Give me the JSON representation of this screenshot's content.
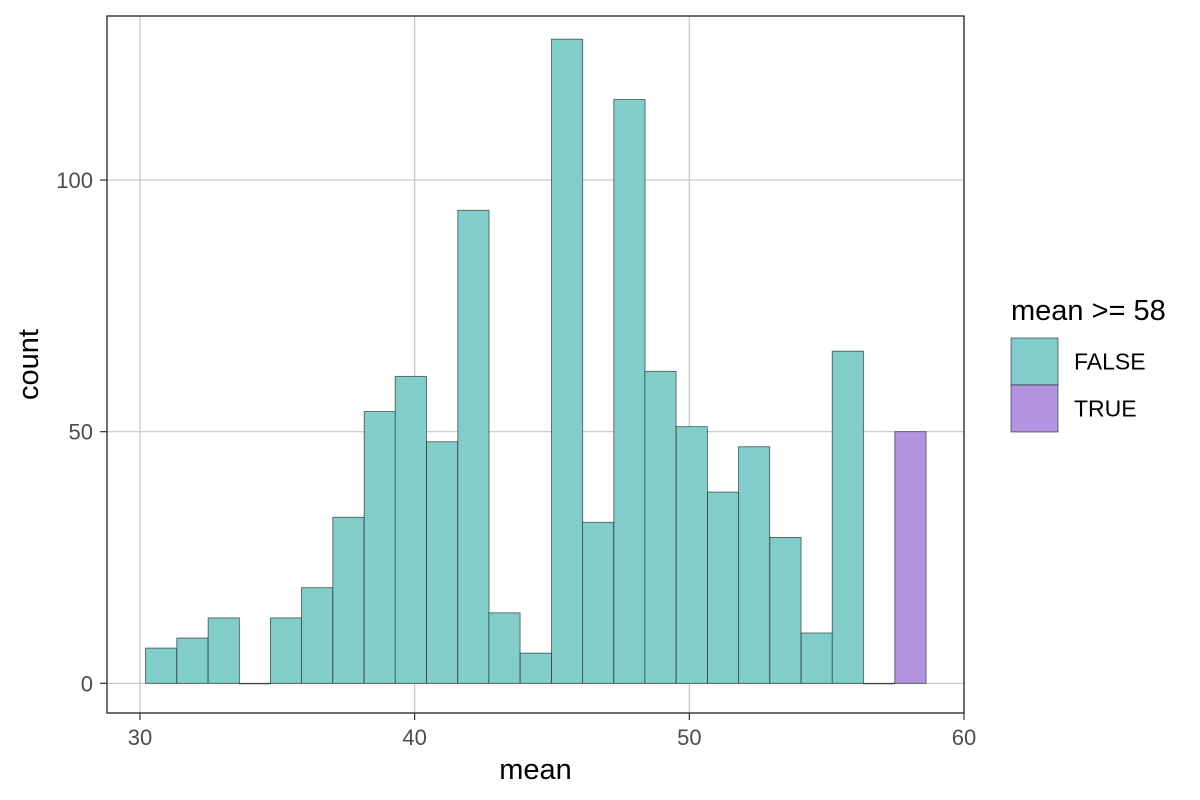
{
  "chart_data": {
    "type": "bar",
    "title": "",
    "xlabel": "mean",
    "ylabel": "count",
    "xlim": [
      28.8,
      60
    ],
    "ylim": [
      -5.9,
      132.6
    ],
    "x_ticks": [
      30,
      40,
      50,
      60
    ],
    "y_ticks": [
      0,
      50,
      100
    ],
    "grid": true,
    "bin_width": 1.1364,
    "legend": {
      "title": "mean >= 58",
      "position": "right",
      "entries": [
        {
          "label": "FALSE",
          "color": "#80cdca"
        },
        {
          "label": "TRUE",
          "color": "#b294e0"
        }
      ]
    },
    "bins": [
      {
        "x": 30.77,
        "count": 7,
        "group": "FALSE"
      },
      {
        "x": 31.91,
        "count": 9,
        "group": "FALSE"
      },
      {
        "x": 33.05,
        "count": 13,
        "group": "FALSE"
      },
      {
        "x": 34.18,
        "count": 0,
        "group": "FALSE"
      },
      {
        "x": 35.32,
        "count": 13,
        "group": "FALSE"
      },
      {
        "x": 36.45,
        "count": 19,
        "group": "FALSE"
      },
      {
        "x": 37.59,
        "count": 33,
        "group": "FALSE"
      },
      {
        "x": 38.73,
        "count": 54,
        "group": "FALSE"
      },
      {
        "x": 39.86,
        "count": 61,
        "group": "FALSE"
      },
      {
        "x": 41.0,
        "count": 48,
        "group": "FALSE"
      },
      {
        "x": 42.14,
        "count": 94,
        "group": "FALSE"
      },
      {
        "x": 43.27,
        "count": 14,
        "group": "FALSE"
      },
      {
        "x": 44.41,
        "count": 6,
        "group": "FALSE"
      },
      {
        "x": 45.55,
        "count": 128,
        "group": "FALSE"
      },
      {
        "x": 46.68,
        "count": 32,
        "group": "FALSE"
      },
      {
        "x": 47.82,
        "count": 116,
        "group": "FALSE"
      },
      {
        "x": 48.95,
        "count": 62,
        "group": "FALSE"
      },
      {
        "x": 50.09,
        "count": 51,
        "group": "FALSE"
      },
      {
        "x": 51.23,
        "count": 38,
        "group": "FALSE"
      },
      {
        "x": 52.36,
        "count": 47,
        "group": "FALSE"
      },
      {
        "x": 53.5,
        "count": 29,
        "group": "FALSE"
      },
      {
        "x": 54.64,
        "count": 10,
        "group": "FALSE"
      },
      {
        "x": 55.77,
        "count": 66,
        "group": "FALSE"
      },
      {
        "x": 56.91,
        "count": 0,
        "group": "FALSE"
      },
      {
        "x": 58.05,
        "count": 50,
        "group": "TRUE"
      }
    ]
  }
}
